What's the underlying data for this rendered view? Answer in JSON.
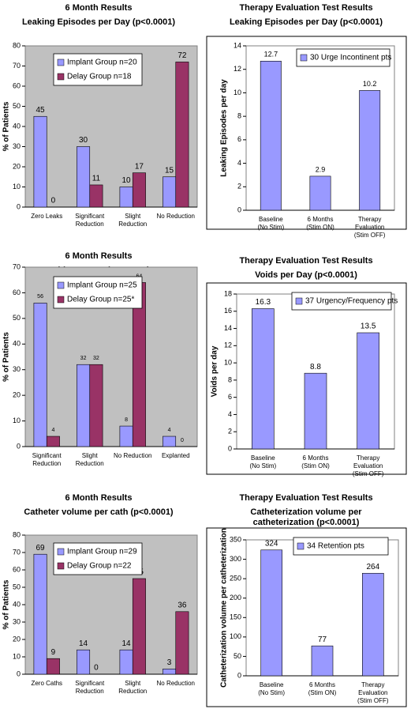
{
  "chart_data": [
    {
      "type": "bar",
      "title": "6 Month Results",
      "subtitle": "Leaking Episodes per Day (p<0.0001)",
      "ylabel": "% of Patients",
      "categories": [
        "Zero Leaks",
        "Significant\nReduction",
        "Slight\nReduction",
        "No Reduction"
      ],
      "series": [
        {
          "name": "Implant Group n=20",
          "color": "#9999ff",
          "values": [
            45,
            30,
            10,
            15
          ]
        },
        {
          "name": "Delay Group n=18",
          "color": "#993366",
          "values": [
            0,
            11,
            17,
            72
          ]
        }
      ],
      "ylim": [
        0,
        80
      ],
      "yticks": [
        0,
        10,
        20,
        30,
        40,
        50,
        60,
        70,
        80
      ],
      "background": "#c0c0c0"
    },
    {
      "type": "bar",
      "title": "Therapy Evaluation Test Results",
      "subtitle": "Leaking Episodes per Day (p<0.0001)",
      "ylabel": "Leaking Episodes per day",
      "categories": [
        "Baseline\n(No Stim)",
        "6 Months\n(Stim ON)",
        "Therapy\nEvaluation\n(Stim OFF)"
      ],
      "series": [
        {
          "name": "30 Urge Incontinent pts",
          "color": "#9999ff",
          "values": [
            12.7,
            2.9,
            10.2
          ]
        }
      ],
      "ylim": [
        0,
        14
      ],
      "yticks": [
        0,
        2,
        4,
        6,
        8,
        10,
        12,
        14
      ],
      "background": "#ffffff"
    },
    {
      "type": "bar",
      "title": "6 Month Results",
      "subtitle": "Voids per Day (p<0.0001)",
      "ylabel": "% of Patients",
      "categories": [
        "Significant\nReduction",
        "Slight\nReduction",
        "No Reduction",
        "Explanted"
      ],
      "series": [
        {
          "name": "Implant Group n=25",
          "color": "#9999ff",
          "values": [
            56,
            32,
            8,
            4
          ]
        },
        {
          "name": "Delay Group n=25*",
          "color": "#993366",
          "values": [
            4,
            32,
            64,
            0
          ]
        }
      ],
      "ylim": [
        0,
        70
      ],
      "yticks": [
        0,
        10,
        20,
        30,
        40,
        50,
        60,
        70
      ],
      "background": "#c0c0c0"
    },
    {
      "type": "bar",
      "title": "Therapy Evaluation Test Results",
      "subtitle": "Voids per Day (p<0.0001)",
      "ylabel": "Voids per day",
      "categories": [
        "Baseline\n(No Stim)",
        "6 Months\n(Stim ON)",
        "Therapy\nEvaluation\n(Stim OFF)"
      ],
      "series": [
        {
          "name": "37 Urgency/Frequency pts",
          "color": "#9999ff",
          "values": [
            16.3,
            8.8,
            13.5
          ]
        }
      ],
      "ylim": [
        0,
        18
      ],
      "yticks": [
        0,
        2,
        4,
        6,
        8,
        10,
        12,
        14,
        16,
        18
      ],
      "background": "#ffffff"
    },
    {
      "type": "bar",
      "title": "6 Month Results",
      "subtitle": "Catheter volume per cath (p<0.0001)",
      "ylabel": "% of Patients",
      "categories": [
        "Zero Caths",
        "Significant\nReduction",
        "Slight\nReduction",
        "No Reduction"
      ],
      "series": [
        {
          "name": "Implant Group n=29",
          "color": "#9999ff",
          "values": [
            69,
            14,
            14,
            3
          ]
        },
        {
          "name": "Delay Group n=22",
          "color": "#993366",
          "values": [
            9,
            0,
            55,
            36
          ]
        }
      ],
      "ylim": [
        0,
        80
      ],
      "yticks": [
        0,
        10,
        20,
        30,
        40,
        50,
        60,
        70,
        80
      ],
      "background": "#c0c0c0"
    },
    {
      "type": "bar",
      "title": "Therapy Evaluation Test Results",
      "subtitle": "Catheterization volume per\ncatheterization (p<0.0001)",
      "ylabel": "Catheterization volume per catheterization",
      "categories": [
        "Baseline\n(No Stim)",
        "6 Months\n(Stim ON)",
        "Therapy\nEvaluation\n(Stim OFF)"
      ],
      "series": [
        {
          "name": "34 Retention pts",
          "color": "#9999ff",
          "values": [
            324,
            77,
            264
          ]
        }
      ],
      "ylim": [
        0,
        350
      ],
      "yticks": [
        0,
        50,
        100,
        150,
        200,
        250,
        300,
        350
      ],
      "background": "#ffffff"
    }
  ]
}
